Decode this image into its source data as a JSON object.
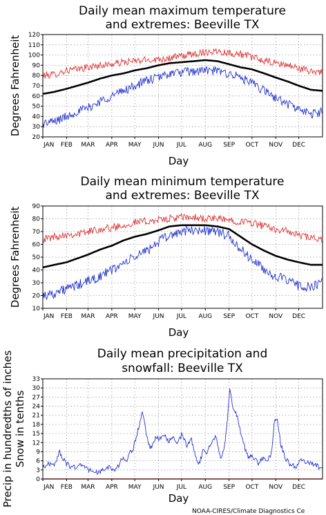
{
  "credit": "NOAA-CIRES/Climate Diagnostics Ce",
  "colors": {
    "max": "#dd3333",
    "mean": "#000000",
    "min": "#2233cc",
    "precip": "#2233cc",
    "snow": "#dd3333",
    "grid": "#999999"
  },
  "chart_data": [
    {
      "type": "line",
      "title_lines": [
        "Daily mean maximum temperature",
        "and extremes: Beeville TX"
      ],
      "xlabel": "Day",
      "ylabel": "Degrees Fahrenheit",
      "ylim": [
        20,
        120
      ],
      "yticks": [
        20,
        30,
        40,
        50,
        60,
        70,
        80,
        90,
        100,
        110,
        120
      ],
      "xlim": [
        0,
        365
      ],
      "xticks": [
        {
          "label": "JAN",
          "day": 0
        },
        {
          "label": "FEB",
          "day": 31
        },
        {
          "label": "MAR",
          "day": 59
        },
        {
          "label": "APR",
          "day": 90
        },
        {
          "label": "MAY",
          "day": 120
        },
        {
          "label": "JUN",
          "day": 151
        },
        {
          "label": "JUL",
          "day": 181
        },
        {
          "label": "AUG",
          "day": 212
        },
        {
          "label": "SEP",
          "day": 243
        },
        {
          "label": "OCT",
          "day": 273
        },
        {
          "label": "NOV",
          "day": 304
        },
        {
          "label": "DEC",
          "day": 334
        }
      ],
      "grid": true,
      "anchor_days": [
        0,
        15,
        31,
        45,
        59,
        75,
        90,
        105,
        120,
        135,
        151,
        165,
        181,
        197,
        212,
        228,
        243,
        258,
        273,
        289,
        304,
        320,
        334,
        350,
        365
      ],
      "series": [
        {
          "key": "max",
          "noise": 3.5,
          "values": [
            80,
            81,
            85,
            86,
            88,
            90,
            91,
            93,
            94,
            95,
            96,
            97,
            99,
            101,
            103,
            104,
            102,
            101,
            98,
            94,
            92,
            90,
            87,
            84,
            84
          ]
        },
        {
          "key": "mean",
          "noise": 0,
          "values": [
            62,
            64,
            67,
            70,
            73,
            77,
            80,
            82,
            85,
            87,
            90,
            92,
            93,
            94,
            95,
            94,
            91,
            88,
            86,
            82,
            78,
            74,
            70,
            66,
            65
          ]
        },
        {
          "key": "min",
          "noise": 4.5,
          "values": [
            33,
            35,
            40,
            45,
            48,
            55,
            60,
            65,
            70,
            75,
            78,
            82,
            83,
            84,
            85,
            84,
            82,
            78,
            72,
            65,
            58,
            52,
            47,
            42,
            45
          ]
        }
      ]
    },
    {
      "type": "line",
      "title_lines": [
        "Daily mean minimum temperature",
        "and extremes: Beeville TX"
      ],
      "xlabel": "Day",
      "ylabel": "Degrees Fahrenheit",
      "ylim": [
        10,
        90
      ],
      "yticks": [
        10,
        20,
        30,
        40,
        50,
        60,
        70,
        80,
        90
      ],
      "xlim": [
        0,
        365
      ],
      "xticks": [
        {
          "label": "JAN",
          "day": 0
        },
        {
          "label": "FEB",
          "day": 31
        },
        {
          "label": "MAR",
          "day": 59
        },
        {
          "label": "APR",
          "day": 90
        },
        {
          "label": "MAY",
          "day": 120
        },
        {
          "label": "JUN",
          "day": 151
        },
        {
          "label": "JUL",
          "day": 181
        },
        {
          "label": "AUG",
          "day": 212
        },
        {
          "label": "SEP",
          "day": 243
        },
        {
          "label": "OCT",
          "day": 273
        },
        {
          "label": "NOV",
          "day": 304
        },
        {
          "label": "DEC",
          "day": 334
        }
      ],
      "grid": true,
      "anchor_days": [
        0,
        15,
        31,
        45,
        59,
        75,
        90,
        105,
        120,
        135,
        151,
        165,
        181,
        197,
        212,
        228,
        243,
        258,
        273,
        289,
        304,
        320,
        334,
        350,
        365
      ],
      "series": [
        {
          "key": "max",
          "noise": 3,
          "values": [
            64,
            66,
            68,
            68,
            70,
            72,
            73,
            75,
            77,
            78,
            79,
            80,
            81,
            81,
            80,
            80,
            79,
            78,
            77,
            74,
            72,
            70,
            67,
            65,
            63
          ]
        },
        {
          "key": "mean",
          "noise": 0,
          "values": [
            42,
            44,
            46,
            49,
            52,
            56,
            59,
            63,
            66,
            68,
            71,
            74,
            75,
            75,
            75,
            74,
            72,
            66,
            60,
            55,
            51,
            48,
            46,
            44,
            44
          ]
        },
        {
          "key": "min",
          "noise": 4,
          "values": [
            20,
            22,
            25,
            28,
            31,
            35,
            40,
            45,
            50,
            55,
            62,
            67,
            70,
            71,
            71,
            70,
            66,
            56,
            48,
            40,
            35,
            31,
            28,
            26,
            30
          ]
        }
      ]
    },
    {
      "type": "line",
      "title_lines": [
        "Daily mean precipitation and",
        "snowfall: Beeville TX"
      ],
      "xlabel": "Day",
      "ylabel_lines": [
        "Precip in hundredths of inches",
        "Snow in tenths"
      ],
      "ylim": [
        0,
        33
      ],
      "yticks": [
        0,
        3,
        6,
        9,
        12,
        15,
        18,
        21,
        24,
        27,
        30,
        33
      ],
      "xlim": [
        0,
        365
      ],
      "xticks": [
        {
          "label": "JAN",
          "day": 0
        },
        {
          "label": "FEB",
          "day": 31
        },
        {
          "label": "MAR",
          "day": 59
        },
        {
          "label": "APR",
          "day": 90
        },
        {
          "label": "MAY",
          "day": 120
        },
        {
          "label": "JUN",
          "day": 151
        },
        {
          "label": "JUL",
          "day": 181
        },
        {
          "label": "AUG",
          "day": 212
        },
        {
          "label": "SEP",
          "day": 243
        },
        {
          "label": "OCT",
          "day": 273
        },
        {
          "label": "NOV",
          "day": 304
        },
        {
          "label": "DEC",
          "day": 334
        }
      ],
      "grid": true,
      "series": [
        {
          "key": "precip",
          "noise": 0.8,
          "points": [
            [
              0,
              4
            ],
            [
              8,
              5
            ],
            [
              16,
              5
            ],
            [
              22,
              9
            ],
            [
              26,
              7
            ],
            [
              30,
              5
            ],
            [
              38,
              4
            ],
            [
              46,
              4
            ],
            [
              52,
              5
            ],
            [
              58,
              3
            ],
            [
              64,
              3
            ],
            [
              72,
              2
            ],
            [
              80,
              3
            ],
            [
              86,
              4
            ],
            [
              92,
              3
            ],
            [
              98,
              4
            ],
            [
              104,
              7
            ],
            [
              110,
              6
            ],
            [
              114,
              9
            ],
            [
              118,
              10
            ],
            [
              122,
              14
            ],
            [
              126,
              18
            ],
            [
              130,
              22
            ],
            [
              134,
              16
            ],
            [
              138,
              11
            ],
            [
              142,
              10
            ],
            [
              148,
              14
            ],
            [
              152,
              13
            ],
            [
              158,
              15
            ],
            [
              164,
              12
            ],
            [
              170,
              14
            ],
            [
              176,
              12
            ],
            [
              182,
              15
            ],
            [
              188,
              11
            ],
            [
              194,
              13
            ],
            [
              200,
              7
            ],
            [
              204,
              5
            ],
            [
              210,
              10
            ],
            [
              214,
              9
            ],
            [
              220,
              12
            ],
            [
              226,
              14
            ],
            [
              232,
              7
            ],
            [
              236,
              9
            ],
            [
              240,
              17
            ],
            [
              244,
              30
            ],
            [
              248,
              24
            ],
            [
              252,
              22
            ],
            [
              256,
              18
            ],
            [
              260,
              13
            ],
            [
              264,
              10
            ],
            [
              268,
              7
            ],
            [
              272,
              8
            ],
            [
              278,
              6
            ],
            [
              282,
              5
            ],
            [
              286,
              7
            ],
            [
              292,
              6
            ],
            [
              298,
              8
            ],
            [
              302,
              19
            ],
            [
              306,
              20
            ],
            [
              310,
              12
            ],
            [
              316,
              7
            ],
            [
              322,
              5
            ],
            [
              330,
              4
            ],
            [
              336,
              6
            ],
            [
              342,
              6
            ],
            [
              348,
              5
            ],
            [
              354,
              5
            ],
            [
              360,
              4
            ],
            [
              365,
              3
            ]
          ]
        },
        {
          "key": "snow",
          "noise": 0,
          "points": [
            [
              0,
              0.1
            ],
            [
              365,
              0.1
            ]
          ]
        }
      ]
    }
  ]
}
